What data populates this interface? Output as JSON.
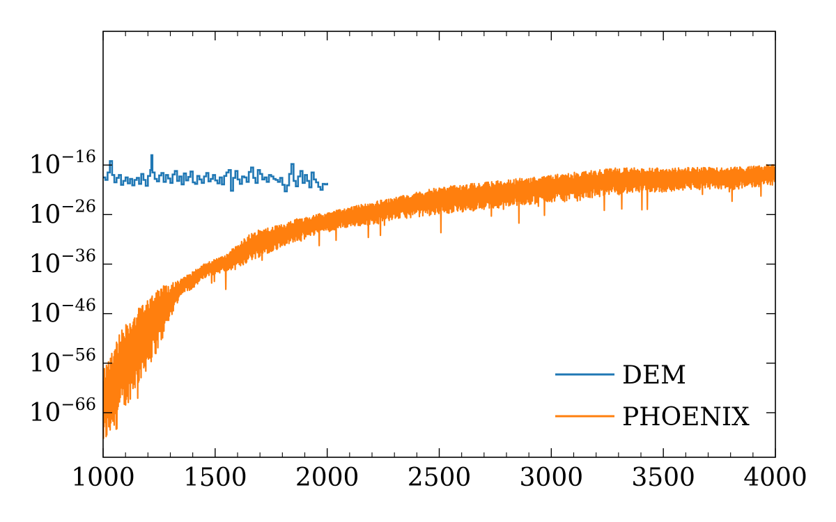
{
  "chart_data": {
    "type": "line",
    "title": "",
    "xlabel": "",
    "ylabel": "",
    "xlim": [
      1000,
      4000
    ],
    "ylim_log10": [
      -75,
      11
    ],
    "y_scale": "log",
    "grid": false,
    "legend_position": "bottom-right",
    "x_ticks": [
      {
        "value": 1000,
        "label": "1000"
      },
      {
        "value": 1500,
        "label": "1500"
      },
      {
        "value": 2000,
        "label": "2000"
      },
      {
        "value": 2500,
        "label": "2500"
      },
      {
        "value": 3000,
        "label": "3000"
      },
      {
        "value": 3500,
        "label": "3500"
      },
      {
        "value": 4000,
        "label": "4000"
      }
    ],
    "y_ticks": [
      {
        "value": -16,
        "base": "10",
        "exponent": "−16"
      },
      {
        "value": -26,
        "base": "10",
        "exponent": "−26"
      },
      {
        "value": -36,
        "base": "10",
        "exponent": "−36"
      },
      {
        "value": -46,
        "base": "10",
        "exponent": "−46"
      },
      {
        "value": -56,
        "base": "10",
        "exponent": "−56"
      },
      {
        "value": -66,
        "base": "10",
        "exponent": "−66"
      }
    ],
    "series": [
      {
        "name": "DEM",
        "color": "#1f77b4",
        "x": [
          1000,
          1010,
          1020,
          1030,
          1040,
          1050,
          1060,
          1070,
          1080,
          1090,
          1100,
          1110,
          1120,
          1130,
          1140,
          1150,
          1160,
          1170,
          1180,
          1190,
          1200,
          1210,
          1215,
          1220,
          1230,
          1240,
          1250,
          1260,
          1270,
          1280,
          1290,
          1300,
          1310,
          1320,
          1330,
          1340,
          1350,
          1360,
          1370,
          1380,
          1390,
          1400,
          1410,
          1420,
          1430,
          1440,
          1450,
          1460,
          1470,
          1480,
          1490,
          1500,
          1510,
          1520,
          1530,
          1540,
          1550,
          1560,
          1570,
          1580,
          1590,
          1600,
          1610,
          1620,
          1630,
          1640,
          1650,
          1660,
          1670,
          1680,
          1690,
          1700,
          1710,
          1720,
          1730,
          1740,
          1750,
          1760,
          1770,
          1780,
          1790,
          1800,
          1810,
          1820,
          1830,
          1840,
          1850,
          1860,
          1870,
          1880,
          1890,
          1900,
          1910,
          1920,
          1930,
          1940,
          1950,
          1960,
          1970,
          1980,
          1990,
          2000
        ],
        "log10_y": [
          -18.5,
          -19.0,
          -17.5,
          -15.2,
          -18.0,
          -19.5,
          -18.6,
          -18.0,
          -20.0,
          -19.2,
          -18.5,
          -19.7,
          -18.8,
          -20.1,
          -19.0,
          -18.6,
          -19.8,
          -17.8,
          -19.0,
          -20.2,
          -18.2,
          -17.0,
          -14.0,
          -17.5,
          -18.8,
          -19.3,
          -18.1,
          -17.6,
          -19.4,
          -18.0,
          -18.7,
          -19.6,
          -17.9,
          -17.2,
          -19.2,
          -18.3,
          -19.9,
          -17.7,
          -19.1,
          -18.4,
          -17.3,
          -19.5,
          -19.8,
          -18.2,
          -18.9,
          -19.6,
          -18.3,
          -17.6,
          -19.3,
          -18.8,
          -18.0,
          -19.1,
          -19.7,
          -18.5,
          -19.9,
          -18.2,
          -17.5,
          -17.0,
          -21.2,
          -18.6,
          -17.2,
          -18.9,
          -19.8,
          -18.3,
          -18.5,
          -19.4,
          -17.4,
          -16.5,
          -18.6,
          -19.6,
          -17.0,
          -17.8,
          -18.9,
          -18.5,
          -19.4,
          -18.0,
          -18.3,
          -18.8,
          -19.0,
          -19.4,
          -18.6,
          -20.0,
          -21.3,
          -20.1,
          -17.8,
          -15.8,
          -19.2,
          -20.3,
          -18.3,
          -17.2,
          -19.6,
          -18.0,
          -19.2,
          -20.5,
          -17.5,
          -18.9,
          -19.5,
          -20.4,
          -21.0,
          -19.8,
          -19.9,
          -19.6
        ]
      },
      {
        "name": "PHOENIX",
        "color": "#ff7f0e",
        "envelope_x": [
          1000,
          1050,
          1100,
          1150,
          1200,
          1250,
          1300,
          1350,
          1400,
          1450,
          1500,
          1550,
          1600,
          1650,
          1700,
          1750,
          1800,
          1850,
          1900,
          1950,
          2000,
          2100,
          2200,
          2300,
          2400,
          2500,
          2600,
          2700,
          2800,
          2900,
          3000,
          3100,
          3200,
          3300,
          3400,
          3500,
          3600,
          3700,
          3800,
          3900,
          4000
        ],
        "envelope_log10_max": [
          -57,
          -52,
          -48,
          -45,
          -42,
          -40.5,
          -40,
          -39,
          -37.5,
          -36,
          -35,
          -34,
          -32,
          -30,
          -29,
          -28.5,
          -28,
          -27,
          -26.5,
          -26,
          -25.5,
          -24.5,
          -23.5,
          -22.5,
          -21.5,
          -20.5,
          -20,
          -19.5,
          -19,
          -18.5,
          -18,
          -17.5,
          -17,
          -16.5,
          -16.5,
          -16.5,
          -16.5,
          -16.5,
          -16.5,
          -16.2,
          -15.8
        ],
        "envelope_log10_min": [
          -73,
          -69,
          -65,
          -61,
          -57,
          -53,
          -47,
          -42,
          -41,
          -39,
          -38,
          -37.5,
          -37,
          -35.5,
          -34.5,
          -33.5,
          -32.5,
          -31.5,
          -31,
          -30,
          -29.5,
          -28.5,
          -28,
          -27,
          -26.5,
          -26,
          -25.5,
          -25,
          -24.5,
          -24,
          -23.5,
          -23,
          -22.5,
          -22,
          -21.5,
          -21.5,
          -21,
          -21,
          -21,
          -20.5,
          -20
        ]
      }
    ]
  }
}
